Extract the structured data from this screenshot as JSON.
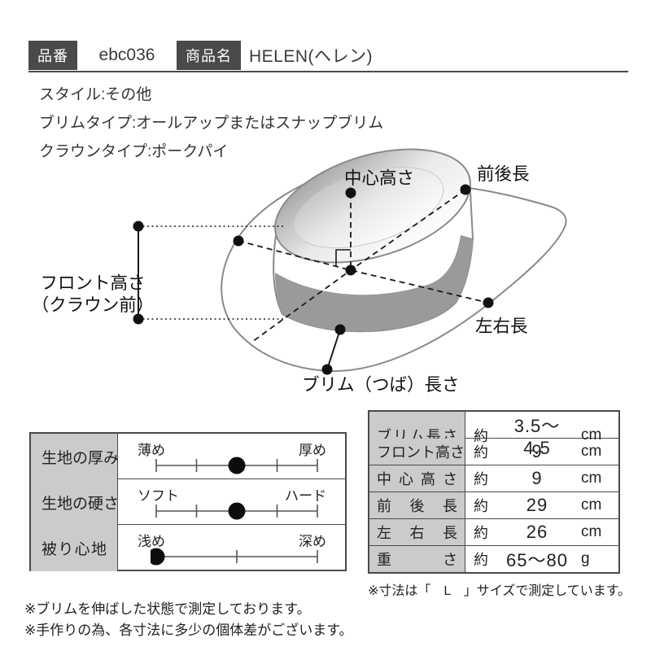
{
  "header": {
    "item_no_label": "品番",
    "item_no_value": "ebc036",
    "product_name_label": "商品名",
    "product_name_value": "HELEN(ヘレン)"
  },
  "specs": [
    {
      "text": "スタイル:その他"
    },
    {
      "text": "ブリムタイプ:オールアップまたはスナップブリム"
    },
    {
      "text": "クラウンタイプ:ポークパイ"
    }
  ],
  "diagram": {
    "labels": {
      "center_height": "中心高さ",
      "front_back_length": "前後長",
      "front_height_line1": "フロント高さ",
      "front_height_line2": "（クラウン前）",
      "left_right_length": "左右長",
      "brim_length": "ブリム（つば）長さ"
    }
  },
  "feature_table": {
    "rows": [
      {
        "label": "生地の厚み",
        "min": "薄め",
        "max": "厚め",
        "ticks": [
          0,
          0.25,
          0.5,
          0.75,
          1
        ],
        "dot": 0.5
      },
      {
        "label": "生地の硬さ",
        "min": "ソフト",
        "max": "ハード",
        "ticks": [
          0,
          0.25,
          0.5,
          0.75,
          1
        ],
        "dot": 0.5
      },
      {
        "label": "被り心地",
        "min": "浅め",
        "max": "深め",
        "ticks": [
          0,
          0.5,
          1
        ],
        "dot": 0
      }
    ]
  },
  "size_table": {
    "rows": [
      {
        "label": "ブリム長さ",
        "prefix": "約",
        "value": "3.5～4.5",
        "unit": "cm"
      },
      {
        "label": "フロント高さ",
        "prefix": "約",
        "value": "9",
        "unit": "cm"
      },
      {
        "label": "中心高さ",
        "prefix": "約",
        "value": "9",
        "unit": "cm"
      },
      {
        "label": "前後長",
        "prefix": "約",
        "value": "29",
        "unit": "cm"
      },
      {
        "label": "左右長",
        "prefix": "約",
        "value": "26",
        "unit": "cm"
      },
      {
        "label": "重さ",
        "prefix": "約",
        "value": "65～80",
        "unit": "g"
      }
    ]
  },
  "notes_left": [
    {
      "text": "※ブリムを伸ばした状態で測定しております。"
    },
    {
      "text": "※手作りの為、各寸法に多少の個体差がございます。"
    }
  ],
  "note_right": "※寸法は「　L　」サイズで測定しています。",
  "colors": {
    "badge_bg": "#4a4a4a",
    "table_header_bg": "#cbcbcb",
    "hat_band_gray": "#9a9a9a",
    "hat_outline_gray": "#8a8a8a",
    "measure_line": "#1a1a1a"
  }
}
